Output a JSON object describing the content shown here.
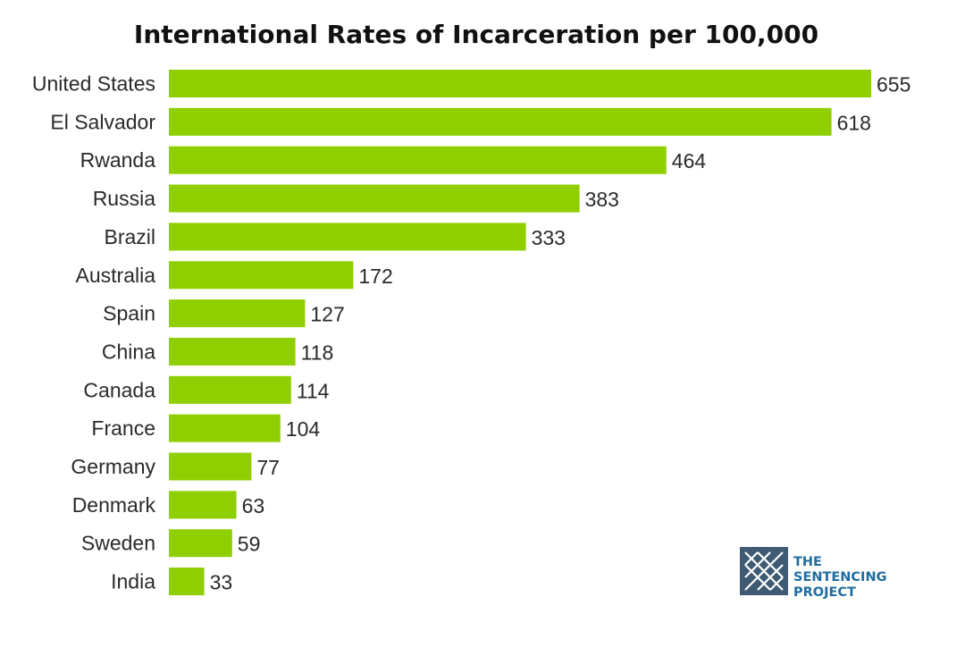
{
  "colors": {
    "bar": "#8fcf00",
    "text": "#2a2a2a",
    "title": "#111111",
    "logo_dark": "#3f5a73",
    "logo_blue": "#1f6c9e"
  },
  "chart_data": {
    "type": "bar",
    "orientation": "horizontal",
    "title": "International Rates of Incarceration per 100,000",
    "xlabel": "",
    "ylabel": "",
    "xlim": [
      0,
      655
    ],
    "grid": false,
    "legend": "none",
    "categories": [
      "United States",
      "El Salvador",
      "Rwanda",
      "Russia",
      "Brazil",
      "Australia",
      "Spain",
      "China",
      "Canada",
      "France",
      "Germany",
      "Denmark",
      "Sweden",
      "India"
    ],
    "values": [
      655,
      618,
      464,
      383,
      333,
      172,
      127,
      118,
      114,
      104,
      77,
      63,
      59,
      33
    ],
    "value_labels": [
      "655",
      "618",
      "464",
      "383",
      "333",
      "172",
      "127",
      "118",
      "114",
      "104",
      "77",
      "63",
      "59",
      "33"
    ]
  },
  "logo": {
    "icon": "sentencing-project-logo-icon",
    "lines": [
      "THE",
      "SENTENCING",
      "PROJECT"
    ]
  }
}
